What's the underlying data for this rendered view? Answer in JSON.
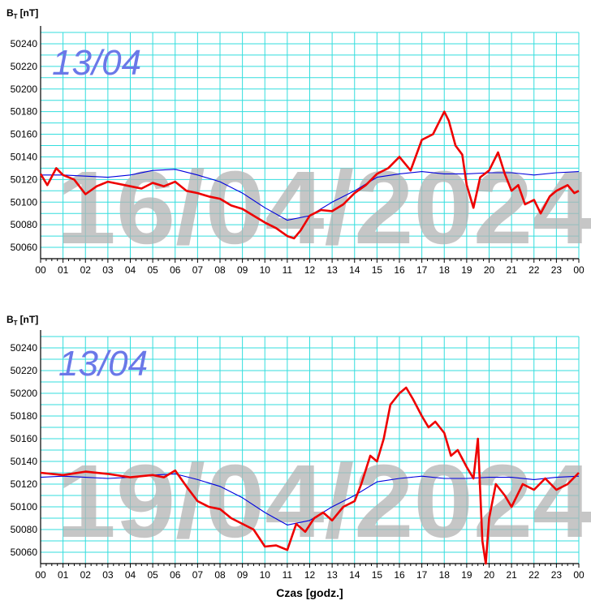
{
  "chart_data": [
    {
      "type": "line",
      "ylabel_main": "B",
      "ylabel_sub": "T",
      "ylabel_unit": "[nT]",
      "reference_label": "13/04",
      "watermark": "16/04/2024",
      "xlabel": "",
      "x_ticks": [
        "00",
        "01",
        "02",
        "03",
        "04",
        "05",
        "06",
        "07",
        "08",
        "09",
        "10",
        "11",
        "12",
        "13",
        "14",
        "15",
        "16",
        "17",
        "18",
        "19",
        "20",
        "21",
        "22",
        "23",
        "00"
      ],
      "xlim": [
        0,
        24
      ],
      "ylim": [
        50050,
        50250
      ],
      "y_ticks": [
        50060,
        50080,
        50100,
        50120,
        50140,
        50160,
        50180,
        50200,
        50220,
        50240
      ],
      "grid": true,
      "series": [
        {
          "color": "#0000dd",
          "points": [
            [
              0,
              50124
            ],
            [
              1,
              50124
            ],
            [
              2,
              50123
            ],
            [
              3,
              50122
            ],
            [
              4,
              50124
            ],
            [
              5,
              50128
            ],
            [
              6,
              50129
            ],
            [
              7,
              50124
            ],
            [
              8,
              50118
            ],
            [
              9,
              50108
            ],
            [
              10,
              50095
            ],
            [
              11,
              50084
            ],
            [
              12,
              50088
            ],
            [
              13,
              50100
            ],
            [
              14,
              50110
            ],
            [
              15,
              50122
            ],
            [
              16,
              50125
            ],
            [
              17,
              50127
            ],
            [
              18,
              50125
            ],
            [
              19,
              50125
            ],
            [
              20,
              50126
            ],
            [
              21,
              50126
            ],
            [
              22,
              50124
            ],
            [
              23,
              50126
            ],
            [
              24,
              50127
            ]
          ]
        },
        {
          "color": "#ee0000",
          "points": [
            [
              0,
              50125
            ],
            [
              0.3,
              50115
            ],
            [
              0.7,
              50130
            ],
            [
              1,
              50124
            ],
            [
              1.5,
              50120
            ],
            [
              2,
              50107
            ],
            [
              2.5,
              50114
            ],
            [
              3,
              50118
            ],
            [
              3.5,
              50116
            ],
            [
              4,
              50114
            ],
            [
              4.5,
              50112
            ],
            [
              5,
              50117
            ],
            [
              5.5,
              50114
            ],
            [
              6,
              50118
            ],
            [
              6.5,
              50110
            ],
            [
              7,
              50108
            ],
            [
              7.5,
              50105
            ],
            [
              8,
              50103
            ],
            [
              8.5,
              50097
            ],
            [
              9,
              50094
            ],
            [
              9.5,
              50088
            ],
            [
              10,
              50082
            ],
            [
              10.5,
              50077
            ],
            [
              11,
              50070
            ],
            [
              11.3,
              50068
            ],
            [
              11.6,
              50075
            ],
            [
              12,
              50088
            ],
            [
              12.5,
              50093
            ],
            [
              13,
              50092
            ],
            [
              13.5,
              50098
            ],
            [
              14,
              50108
            ],
            [
              14.5,
              50115
            ],
            [
              15,
              50125
            ],
            [
              15.5,
              50130
            ],
            [
              16,
              50140
            ],
            [
              16.5,
              50128
            ],
            [
              17,
              50155
            ],
            [
              17.5,
              50160
            ],
            [
              17.8,
              50172
            ],
            [
              18,
              50180
            ],
            [
              18.2,
              50172
            ],
            [
              18.5,
              50150
            ],
            [
              18.8,
              50142
            ],
            [
              19,
              50115
            ],
            [
              19.3,
              50095
            ],
            [
              19.6,
              50122
            ],
            [
              20,
              50128
            ],
            [
              20.4,
              50144
            ],
            [
              20.7,
              50125
            ],
            [
              21,
              50110
            ],
            [
              21.3,
              50115
            ],
            [
              21.6,
              50098
            ],
            [
              22,
              50102
            ],
            [
              22.3,
              50090
            ],
            [
              22.7,
              50105
            ],
            [
              23,
              50110
            ],
            [
              23.5,
              50115
            ],
            [
              23.8,
              50108
            ],
            [
              24,
              50110
            ]
          ]
        }
      ]
    },
    {
      "type": "line",
      "ylabel_main": "B",
      "ylabel_sub": "T",
      "ylabel_unit": "[nT]",
      "reference_label": "13/04",
      "watermark": "19/04/2024",
      "xlabel": "Czas [godz.]",
      "x_ticks": [
        "00",
        "01",
        "02",
        "03",
        "04",
        "05",
        "06",
        "07",
        "08",
        "09",
        "10",
        "11",
        "12",
        "13",
        "14",
        "15",
        "16",
        "17",
        "18",
        "19",
        "20",
        "21",
        "22",
        "23",
        "00"
      ],
      "xlim": [
        0,
        24
      ],
      "ylim": [
        50050,
        50250
      ],
      "y_ticks": [
        50060,
        50080,
        50100,
        50120,
        50140,
        50160,
        50180,
        50200,
        50220,
        50240
      ],
      "grid": true,
      "series": [
        {
          "color": "#0000dd",
          "points": [
            [
              0,
              50126
            ],
            [
              1,
              50127
            ],
            [
              2,
              50126
            ],
            [
              3,
              50125
            ],
            [
              4,
              50126
            ],
            [
              5,
              50128
            ],
            [
              6,
              50129
            ],
            [
              7,
              50124
            ],
            [
              8,
              50118
            ],
            [
              9,
              50108
            ],
            [
              10,
              50095
            ],
            [
              11,
              50084
            ],
            [
              12,
              50088
            ],
            [
              13,
              50100
            ],
            [
              14,
              50110
            ],
            [
              15,
              50122
            ],
            [
              16,
              50125
            ],
            [
              17,
              50127
            ],
            [
              18,
              50125
            ],
            [
              19,
              50125
            ],
            [
              20,
              50126
            ],
            [
              21,
              50126
            ],
            [
              22,
              50124
            ],
            [
              23,
              50126
            ],
            [
              24,
              50127
            ]
          ]
        },
        {
          "color": "#ee0000",
          "points": [
            [
              0,
              50130
            ],
            [
              1,
              50128
            ],
            [
              2,
              50131
            ],
            [
              3,
              50129
            ],
            [
              4,
              50126
            ],
            [
              5,
              50128
            ],
            [
              5.5,
              50126
            ],
            [
              6,
              50132
            ],
            [
              6.5,
              50118
            ],
            [
              7,
              50105
            ],
            [
              7.5,
              50100
            ],
            [
              8,
              50098
            ],
            [
              8.5,
              50090
            ],
            [
              9,
              50085
            ],
            [
              9.5,
              50080
            ],
            [
              10,
              50065
            ],
            [
              10.5,
              50066
            ],
            [
              11,
              50062
            ],
            [
              11.4,
              50085
            ],
            [
              11.8,
              50078
            ],
            [
              12.2,
              50090
            ],
            [
              12.6,
              50095
            ],
            [
              13,
              50088
            ],
            [
              13.5,
              50100
            ],
            [
              14,
              50105
            ],
            [
              14.3,
              50120
            ],
            [
              14.7,
              50145
            ],
            [
              15,
              50140
            ],
            [
              15.3,
              50160
            ],
            [
              15.6,
              50190
            ],
            [
              16,
              50200
            ],
            [
              16.3,
              50205
            ],
            [
              16.6,
              50195
            ],
            [
              17,
              50180
            ],
            [
              17.3,
              50170
            ],
            [
              17.6,
              50175
            ],
            [
              18,
              50165
            ],
            [
              18.3,
              50145
            ],
            [
              18.6,
              50150
            ],
            [
              19,
              50135
            ],
            [
              19.3,
              50125
            ],
            [
              19.5,
              50160
            ],
            [
              19.7,
              50070
            ],
            [
              19.85,
              50050
            ],
            [
              20,
              50090
            ],
            [
              20.3,
              50120
            ],
            [
              20.7,
              50110
            ],
            [
              21,
              50100
            ],
            [
              21.5,
              50120
            ],
            [
              22,
              50115
            ],
            [
              22.5,
              50125
            ],
            [
              23,
              50115
            ],
            [
              23.5,
              50120
            ],
            [
              24,
              50130
            ]
          ]
        }
      ]
    }
  ]
}
